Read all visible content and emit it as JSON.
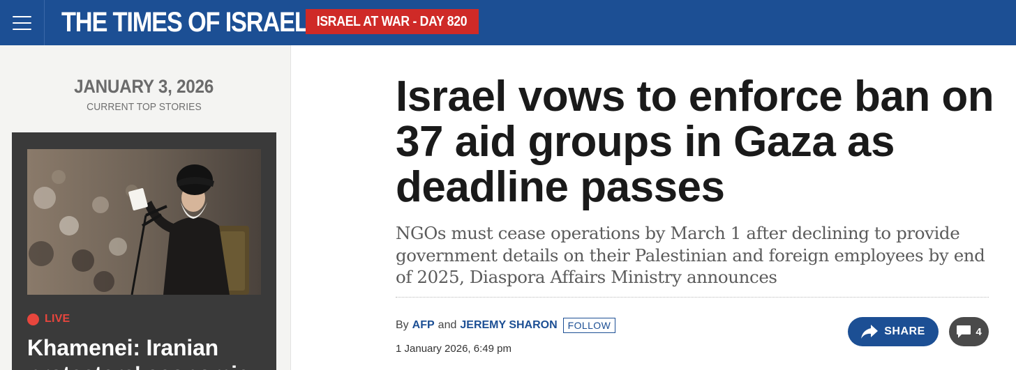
{
  "header": {
    "logo": "THE TIMES OF ISRAEL",
    "war_badge": "ISRAEL AT WAR - DAY 820"
  },
  "sidebar": {
    "date": "JANUARY 3, 2026",
    "subtitle": "CURRENT TOP STORIES",
    "story": {
      "live_label": "LIVE",
      "title": "Khamenei: Iranian protesters' economic"
    }
  },
  "article": {
    "headline": "Israel vows to enforce ban on 37 aid groups in Gaza as deadline passes",
    "dek": "NGOs must cease operations by March 1 after declining to provide government details on their Palestinian and foreign employees by end of 2025, Diaspora Affairs Ministry announces",
    "byline": {
      "by": "By",
      "author1": "AFP",
      "and": "and",
      "author2": "JEREMY SHARON",
      "follow": "FOLLOW"
    },
    "timestamp": "1 January 2026, 6:49 pm",
    "share_label": "SHARE",
    "comment_count": "4"
  },
  "colors": {
    "brand_blue": "#1c4f94",
    "badge_red": "#cf2a27",
    "live_red": "#e8463d"
  },
  "icons": [
    "hamburger-menu-icon",
    "share-arrow-icon",
    "comment-bubble-icon"
  ]
}
